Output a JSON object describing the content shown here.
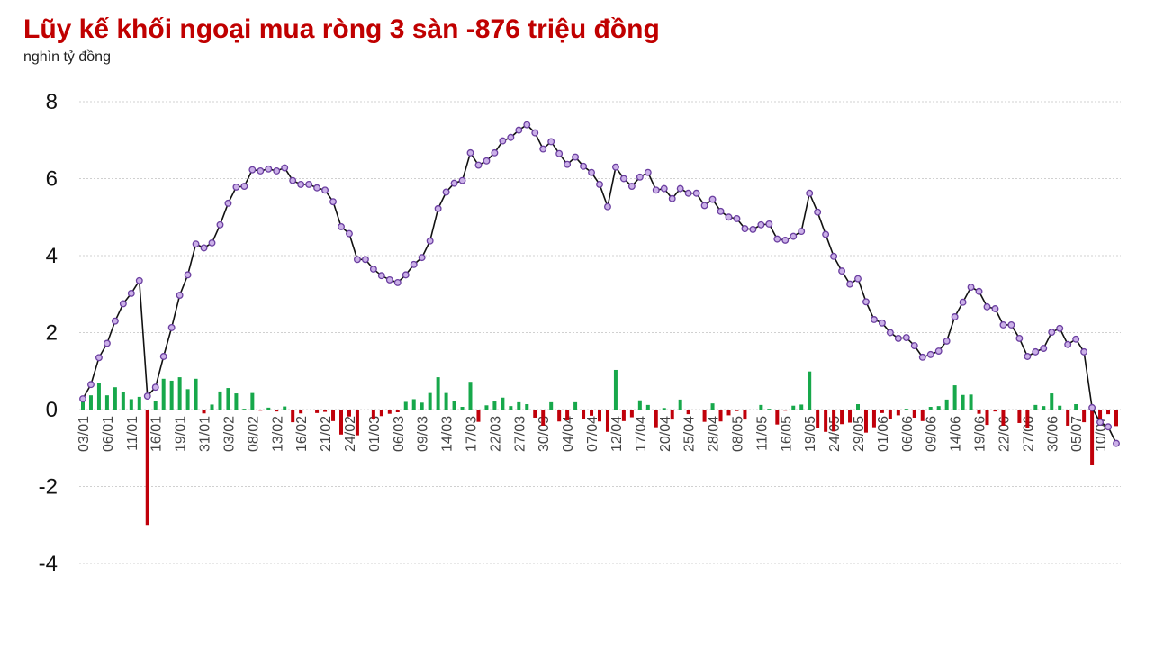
{
  "chart_data": {
    "type": "combo",
    "title": "Lũy kế khối ngoại mua ròng 3 sàn -876 triệu đồng",
    "subtitle": "nghìn tỷ đồng",
    "categories": [
      "03/01",
      null,
      null,
      "06/01",
      null,
      null,
      "11/01",
      null,
      null,
      "16/01",
      null,
      null,
      "19/01",
      null,
      null,
      "31/01",
      null,
      null,
      "03/02",
      null,
      null,
      "08/02",
      null,
      null,
      "13/02",
      null,
      null,
      "16/02",
      null,
      null,
      "21/02",
      null,
      null,
      "24/02",
      null,
      null,
      "01/03",
      null,
      null,
      "06/03",
      null,
      null,
      "09/03",
      null,
      null,
      "14/03",
      null,
      null,
      "17/03",
      null,
      null,
      "22/03",
      null,
      null,
      "27/03",
      null,
      null,
      "30/03",
      null,
      null,
      "04/04",
      null,
      null,
      "07/04",
      null,
      null,
      "12/04",
      null,
      null,
      "17/04",
      null,
      null,
      "20/04",
      null,
      null,
      "25/04",
      null,
      null,
      "28/04",
      null,
      null,
      "08/05",
      null,
      null,
      "11/05",
      null,
      null,
      "16/05",
      null,
      null,
      "19/05",
      null,
      null,
      "24/05",
      null,
      null,
      "29/05",
      null,
      null,
      "01/06",
      null,
      null,
      "06/06",
      null,
      null,
      "09/06",
      null,
      null,
      "14/06",
      null,
      null,
      "19/06",
      null,
      null,
      "22/06",
      null,
      null,
      "27/06",
      null,
      null,
      "30/06",
      null,
      null,
      "05/07",
      null,
      null,
      "10/07",
      null,
      null
    ],
    "series": [
      {
        "type": "bar",
        "color": "#17a84b",
        "negative_color": "#c0000a",
        "values": [
          0.28,
          0.37,
          0.7,
          0.37,
          0.58,
          0.45,
          0.27,
          0.33,
          -3.0,
          0.23,
          0.8,
          0.75,
          0.84,
          0.53,
          0.8,
          -0.1,
          0.13,
          0.47,
          0.56,
          0.42,
          0.02,
          0.43,
          -0.03,
          0.05,
          -0.05,
          0.08,
          -0.33,
          -0.1,
          0,
          -0.09,
          -0.06,
          -0.3,
          -0.65,
          -0.18,
          -0.67,
          0,
          -0.25,
          -0.17,
          -0.11,
          -0.07,
          0.2,
          0.27,
          0.18,
          0.43,
          0.84,
          0.43,
          0.23,
          0.07,
          0.72,
          -0.32,
          0.11,
          0.21,
          0.31,
          0.09,
          0.19,
          0.14,
          -0.21,
          -0.42,
          0.19,
          -0.31,
          -0.28,
          0.19,
          -0.24,
          -0.16,
          -0.31,
          -0.58,
          1.03,
          -0.3,
          -0.2,
          0.24,
          0.12,
          -0.46,
          0.04,
          -0.26,
          0.26,
          -0.12,
          0,
          -0.32,
          0.16,
          -0.31,
          -0.15,
          -0.04,
          -0.26,
          -0.02,
          0.12,
          0.02,
          -0.39,
          -0.03,
          0.1,
          0.13,
          0.99,
          -0.49,
          -0.58,
          -0.57,
          -0.38,
          -0.34,
          0.14,
          -0.6,
          -0.46,
          -0.09,
          -0.25,
          -0.15,
          0.02,
          -0.21,
          -0.3,
          0.07,
          0.09,
          0.26,
          0.63,
          0.38,
          0.39,
          -0.11,
          -0.4,
          -0.05,
          -0.42,
          0,
          -0.35,
          -0.47,
          0.12,
          0.09,
          0.42,
          0.1,
          -0.42,
          0.14,
          -0.33,
          -1.45,
          -0.38,
          -0.12,
          -0.43
        ]
      },
      {
        "type": "line",
        "color": "#111111",
        "marker_color": "#cbb0e8",
        "marker_edge": "#6b3fa0",
        "values": [
          0.28,
          0.65,
          1.35,
          1.72,
          2.3,
          2.75,
          3.02,
          3.35,
          0.35,
          0.58,
          1.38,
          2.13,
          2.97,
          3.5,
          4.3,
          4.2,
          4.33,
          4.8,
          5.36,
          5.78,
          5.8,
          6.23,
          6.2,
          6.25,
          6.2,
          6.28,
          5.95,
          5.85,
          5.85,
          5.76,
          5.7,
          5.4,
          4.75,
          4.57,
          3.9,
          3.9,
          3.65,
          3.48,
          3.37,
          3.3,
          3.5,
          3.77,
          3.95,
          4.38,
          5.22,
          5.65,
          5.88,
          5.95,
          6.67,
          6.35,
          6.46,
          6.67,
          6.98,
          7.07,
          7.26,
          7.4,
          7.19,
          6.77,
          6.96,
          6.65,
          6.37,
          6.56,
          6.32,
          6.16,
          5.85,
          5.27,
          6.3,
          6.0,
          5.8,
          6.04,
          6.16,
          5.7,
          5.74,
          5.48,
          5.74,
          5.62,
          5.62,
          5.3,
          5.46,
          5.15,
          5.0,
          4.96,
          4.7,
          4.68,
          4.8,
          4.82,
          4.43,
          4.4,
          4.5,
          4.63,
          5.62,
          5.13,
          4.55,
          3.98,
          3.6,
          3.26,
          3.4,
          2.8,
          2.34,
          2.25,
          2.0,
          1.85,
          1.87,
          1.66,
          1.36,
          1.43,
          1.52,
          1.78,
          2.41,
          2.79,
          3.18,
          3.07,
          2.67,
          2.62,
          2.2,
          2.2,
          1.85,
          1.38,
          1.5,
          1.59,
          2.01,
          2.11,
          1.69,
          1.83,
          1.5,
          0.05,
          -0.33,
          -0.45,
          -0.88
        ]
      }
    ],
    "ylim": [
      -4,
      8
    ],
    "yticks": [
      -4,
      -2,
      0,
      2,
      4,
      6,
      8
    ],
    "grid": true
  }
}
